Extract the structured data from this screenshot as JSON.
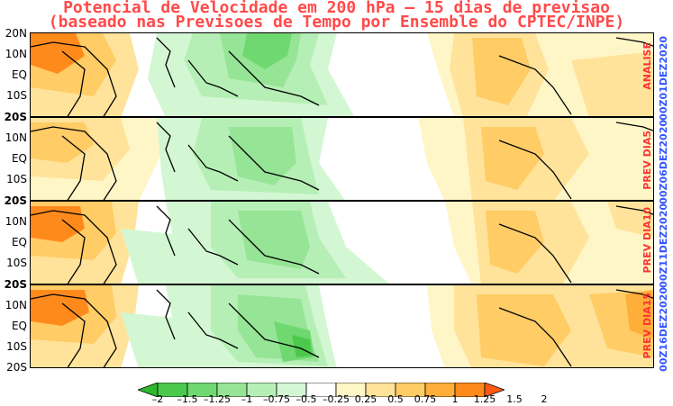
{
  "title": {
    "line1": "Potencial de Velocidade em 200 hPa – 15 dias de previsao",
    "line2": "(baseado nas Previsoes de Tempo por Ensemble do CPTEC/INPE)"
  },
  "lat_labels": [
    "20N",
    "10N",
    "EQ",
    "10S",
    "20S"
  ],
  "panels": [
    {
      "label": "ANALISE",
      "date": "00Z01DEZ2020"
    },
    {
      "label": "PREV DIA5",
      "date": "00Z06DEZ2020"
    },
    {
      "label": "PREV DIA10",
      "date": "00Z11DEZ2020"
    },
    {
      "label": "PREV DIA15",
      "date": "00Z16DEZ2020"
    }
  ],
  "colorbar": {
    "ticks": [
      "–2",
      "–1.5",
      "–1.25",
      "–1",
      "–0.75",
      "–0.5",
      "–0.25",
      "0.25",
      "0.5",
      "0.75",
      "1",
      "1.25",
      "1.5",
      "2"
    ],
    "colors": [
      "#2db82d",
      "#4cc94c",
      "#70d870",
      "#96e596",
      "#b6efb6",
      "#d3f7d3",
      "#ffffff",
      "#fff6c8",
      "#ffe39a",
      "#ffcc66",
      "#ffae3a",
      "#ff8a1c",
      "#ff5a12"
    ]
  }
}
